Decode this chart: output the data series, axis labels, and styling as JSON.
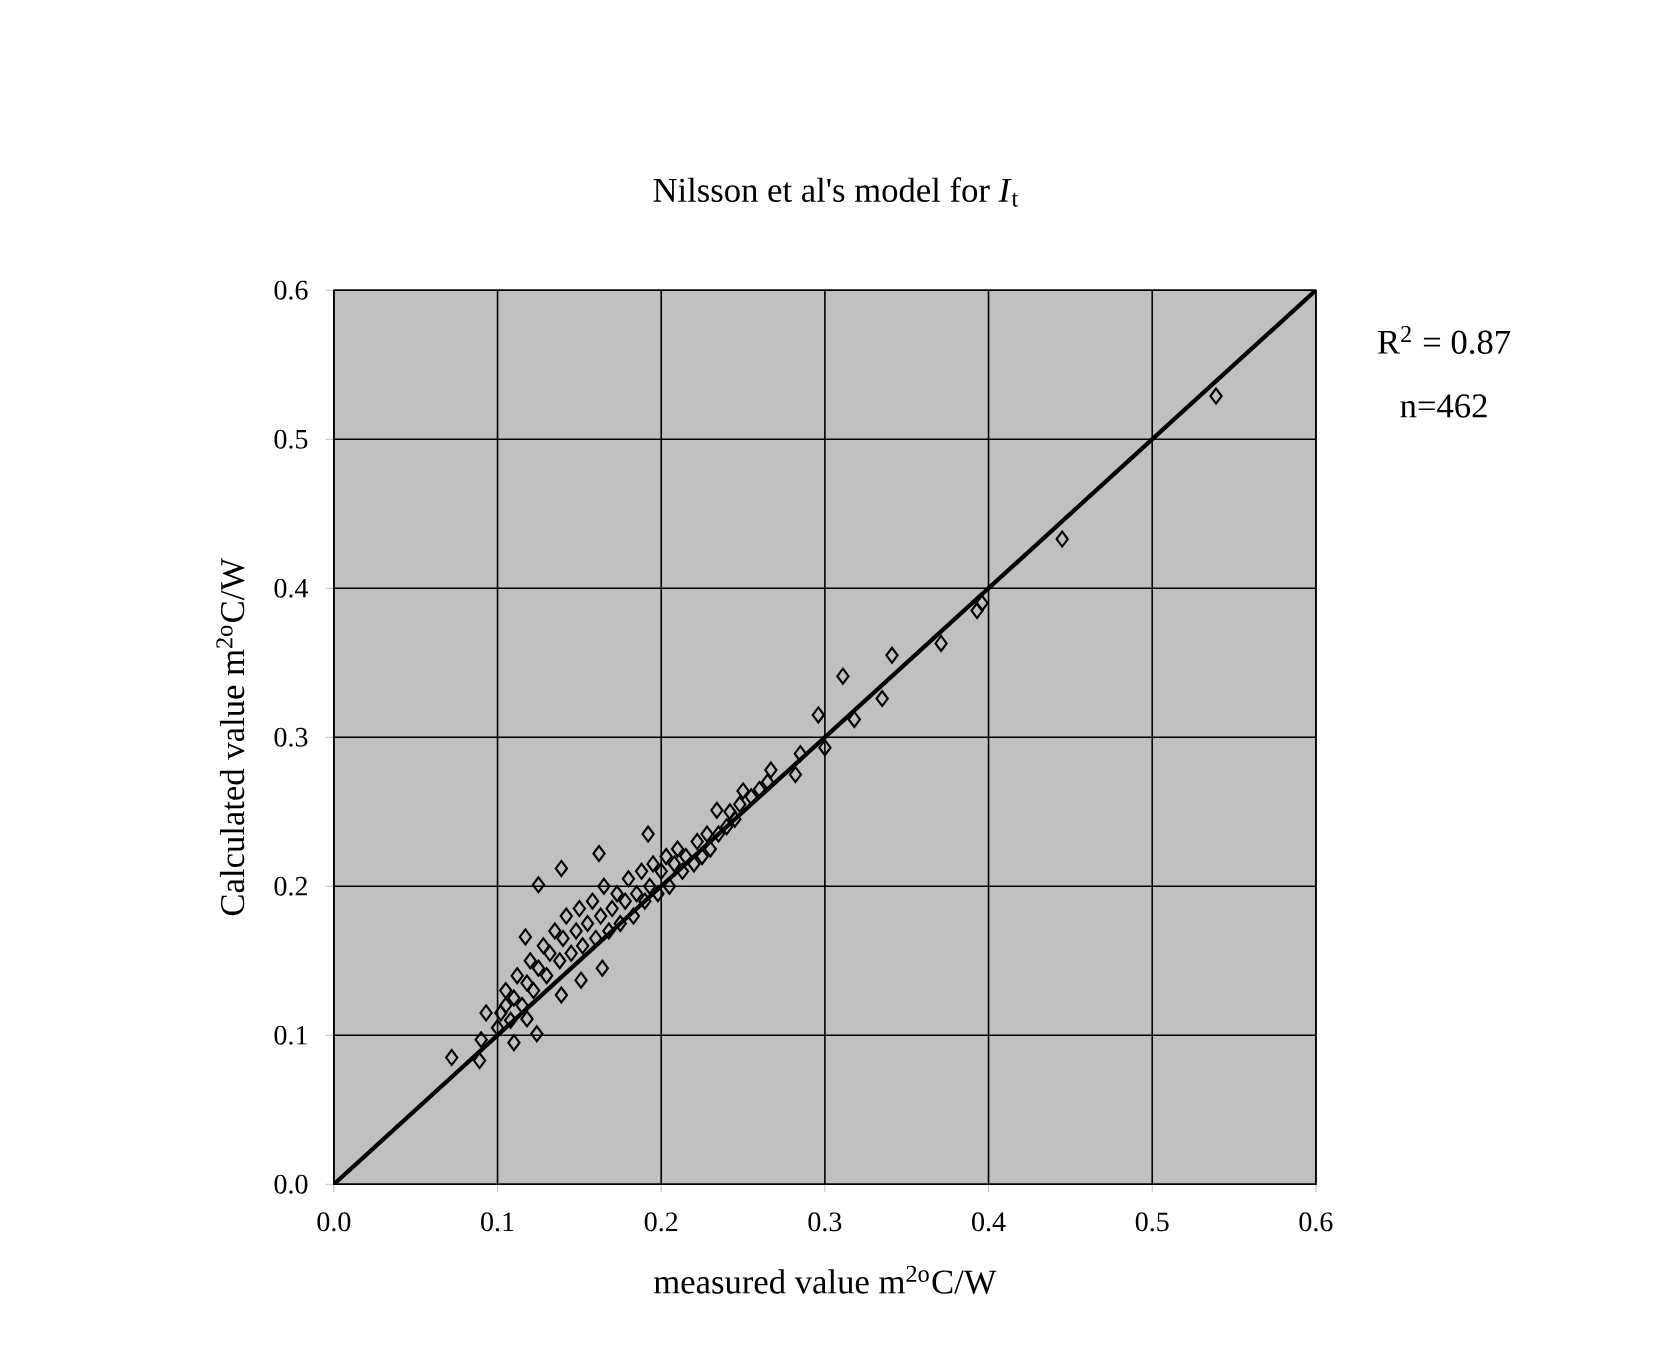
{
  "chart_data": {
    "type": "scatter",
    "title": "Nilsson et al's model for *I*$_{t}$",
    "xlabel": "measured value m$^{2o}$C/W",
    "ylabel": "Calculated value m$^{2o}$C/W",
    "annotations": [
      "R$^{2}$ = 0.87",
      "n=462"
    ],
    "xlim": [
      0,
      0.6
    ],
    "ylim": [
      0,
      0.6
    ],
    "xticks": [
      {
        "value": 0,
        "label": "0.0"
      },
      0.1,
      0.2,
      0.3,
      0.4,
      0.5,
      0.6
    ],
    "yticks": [
      {
        "value": 0,
        "label": "0.0"
      },
      0.1,
      0.2,
      0.3,
      0.4,
      0.5,
      0.6
    ],
    "grid": true,
    "marker": "diamond",
    "series": [
      {
        "type": "scatter",
        "color": "#000000",
        "x": [
          0.072,
          0.089,
          0.09,
          0.11,
          0.124,
          0.118,
          0.125,
          0.139,
          0.162,
          0.192,
          0.164,
          0.151,
          0.139,
          0.117,
          0.093,
          0.234,
          0.1,
          0.102,
          0.105,
          0.105,
          0.108,
          0.11,
          0.112,
          0.115,
          0.118,
          0.12,
          0.122,
          0.125,
          0.128,
          0.13,
          0.132,
          0.135,
          0.138,
          0.14,
          0.142,
          0.145,
          0.148,
          0.15,
          0.152,
          0.155,
          0.158,
          0.16,
          0.163,
          0.165,
          0.168,
          0.17,
          0.173,
          0.175,
          0.178,
          0.18,
          0.183,
          0.185,
          0.188,
          0.19,
          0.193,
          0.195,
          0.198,
          0.2,
          0.203,
          0.205,
          0.208,
          0.21,
          0.213,
          0.215,
          0.22,
          0.222,
          0.225,
          0.228,
          0.23,
          0.235,
          0.24,
          0.242,
          0.245,
          0.248,
          0.25,
          0.255,
          0.26,
          0.265,
          0.267,
          0.282,
          0.285,
          0.3,
          0.296,
          0.318,
          0.311,
          0.335,
          0.341,
          0.371,
          0.393,
          0.396,
          0.445,
          0.539
        ],
        "values": [
          0.085,
          0.083,
          0.097,
          0.095,
          0.101,
          0.111,
          0.201,
          0.212,
          0.222,
          0.235,
          0.145,
          0.137,
          0.127,
          0.166,
          0.115,
          0.251,
          0.105,
          0.115,
          0.12,
          0.13,
          0.11,
          0.125,
          0.14,
          0.12,
          0.135,
          0.15,
          0.13,
          0.145,
          0.16,
          0.14,
          0.155,
          0.17,
          0.15,
          0.165,
          0.18,
          0.155,
          0.17,
          0.185,
          0.16,
          0.175,
          0.19,
          0.165,
          0.18,
          0.2,
          0.17,
          0.185,
          0.195,
          0.175,
          0.19,
          0.205,
          0.18,
          0.195,
          0.21,
          0.19,
          0.2,
          0.215,
          0.195,
          0.21,
          0.22,
          0.2,
          0.215,
          0.225,
          0.21,
          0.22,
          0.215,
          0.23,
          0.22,
          0.235,
          0.225,
          0.235,
          0.24,
          0.25,
          0.245,
          0.255,
          0.264,
          0.26,
          0.265,
          0.27,
          0.278,
          0.275,
          0.289,
          0.293,
          0.315,
          0.312,
          0.341,
          0.326,
          0.355,
          0.363,
          0.385,
          0.39,
          0.433,
          0.529
        ]
      },
      {
        "type": "line",
        "color": "#000000",
        "marker": "none",
        "x": [
          0,
          0.6
        ],
        "values": [
          0,
          0.6
        ]
      }
    ]
  }
}
